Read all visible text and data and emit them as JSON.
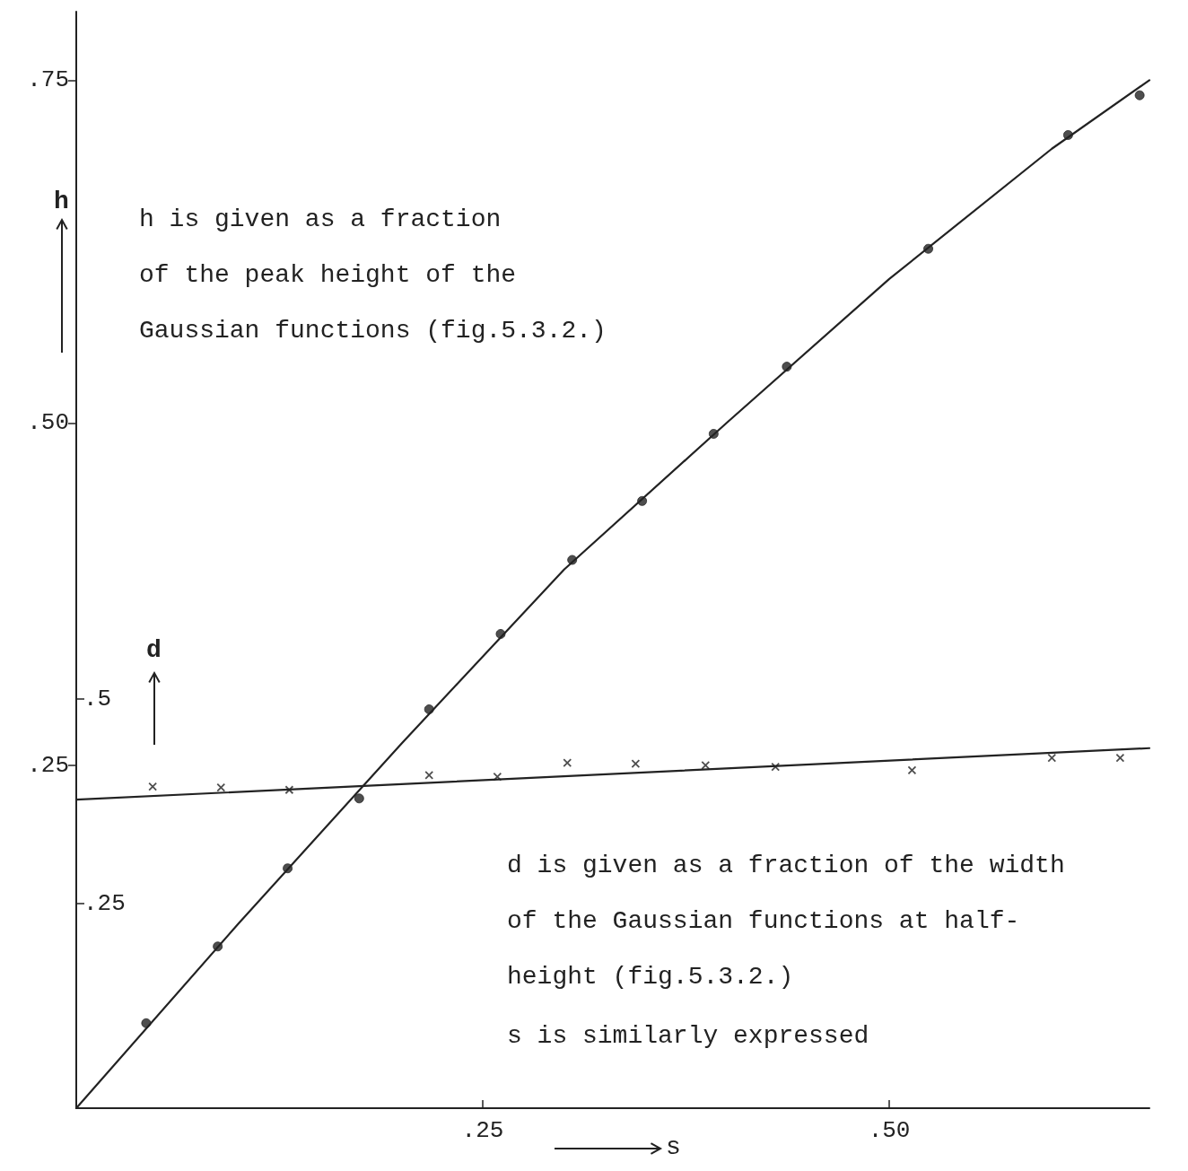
{
  "chart_data": {
    "type": "scatter",
    "xlabel": "s",
    "ylabel": "h",
    "y2label": "d",
    "xlim": [
      0,
      0.66
    ],
    "xticks": [
      {
        "value": 0.25,
        "label": ".25"
      },
      {
        "value": 0.5,
        "label": ".50"
      }
    ],
    "ylim": [
      0,
      0.8
    ],
    "yticks": [
      {
        "value": 0.25,
        "label": ".25"
      },
      {
        "value": 0.5,
        "label": ".50"
      },
      {
        "value": 0.75,
        "label": ".75"
      }
    ],
    "y2lim": [
      0,
      1.34
    ],
    "y2ticks": [
      {
        "value": 0.25,
        "label": ".25"
      },
      {
        "value": 0.5,
        "label": ".5"
      }
    ],
    "grid": false,
    "series": [
      {
        "marker": "circle",
        "color": "#222222",
        "x": [
          0.043,
          0.087,
          0.13,
          0.174,
          0.217,
          0.261,
          0.305,
          0.348,
          0.392,
          0.437,
          0.524,
          0.61,
          0.654
        ],
        "values": [
          0.062,
          0.118,
          0.175,
          0.226,
          0.291,
          0.346,
          0.4,
          0.443,
          0.492,
          0.541,
          0.627,
          0.71,
          0.739
        ]
      },
      {
        "type": "line",
        "marker": "none",
        "line_style": "solid",
        "color": "#222222",
        "x": [
          0,
          0.1,
          0.2,
          0.3,
          0.4,
          0.5,
          0.6,
          0.66
        ],
        "values": [
          0,
          0.135,
          0.266,
          0.393,
          0.5,
          0.605,
          0.7,
          0.75
        ]
      },
      {
        "marker": "cross",
        "axis": "y2",
        "color": "#222222",
        "x": [
          0.047,
          0.089,
          0.131,
          0.217,
          0.259,
          0.302,
          0.344,
          0.387,
          0.43,
          0.514,
          0.6,
          0.642
        ],
        "values": [
          0.393,
          0.392,
          0.389,
          0.407,
          0.405,
          0.422,
          0.421,
          0.419,
          0.417,
          0.413,
          0.428,
          0.428
        ]
      },
      {
        "type": "line",
        "marker": "none",
        "line_style": "solid",
        "axis": "y2",
        "color": "#222222",
        "x": [
          0,
          0.66
        ],
        "values": [
          0.377,
          0.44
        ]
      }
    ],
    "annotations": [
      "h is given as a fraction\nof the peak height of the\nGaussian functions (fig.5.3.2.)",
      "d is given as a fraction of the width\nof the Gaussian functions at half-\nheight (fig.5.3.2.)",
      "s is similarly expressed"
    ]
  }
}
